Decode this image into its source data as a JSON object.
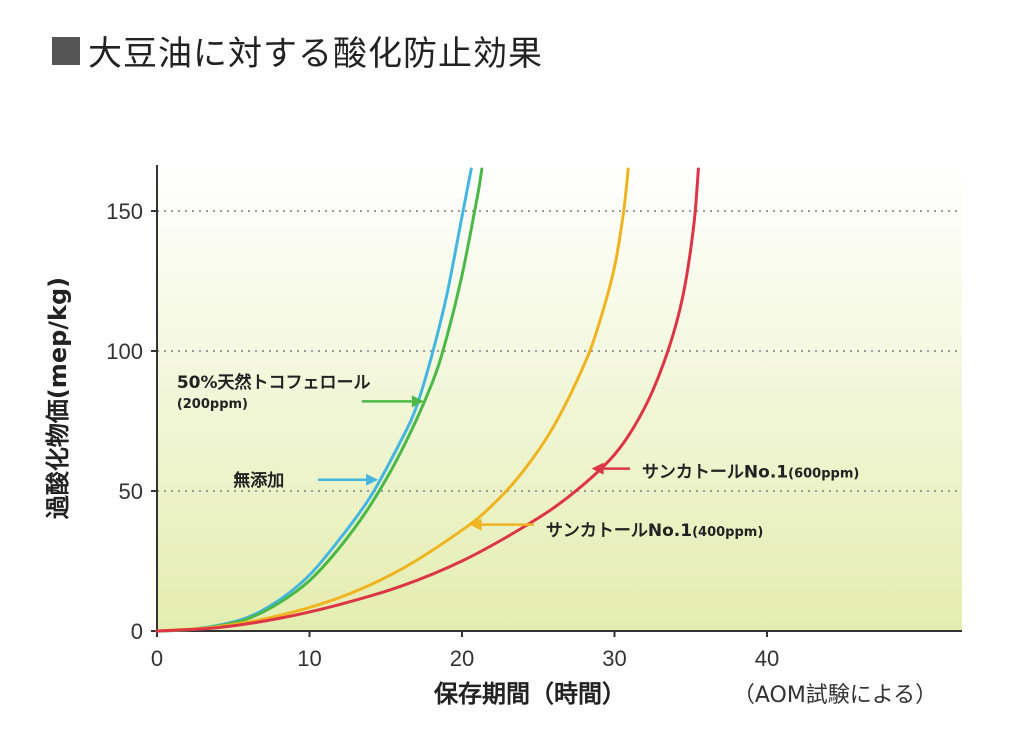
{
  "title": "大豆油に対する酸化防止効果",
  "colors": {
    "blue": "#45b6e0",
    "green": "#4cb848",
    "orange": "#efb41f",
    "red": "#dc3545",
    "background_top": "#ffffff",
    "background_bottom": "#e4edb0"
  },
  "chart_data": {
    "type": "line",
    "xlabel": "保存期間（時間）",
    "xnote": "（AOM試験による）",
    "ylabel": "過酸化物価(mep/kg)",
    "xlim": [
      0,
      52
    ],
    "ylim": [
      0,
      165
    ],
    "x_ticks": [
      0,
      10,
      20,
      30,
      40
    ],
    "y_ticks": [
      0,
      50,
      100,
      150
    ],
    "grid": "horizontal dotted",
    "series": [
      {
        "name": "無添加",
        "color": "#45b6e0",
        "points": [
          [
            0,
            0
          ],
          [
            2,
            0.5
          ],
          [
            4,
            2
          ],
          [
            6,
            5
          ],
          [
            8,
            11
          ],
          [
            10,
            20
          ],
          [
            12,
            33
          ],
          [
            14,
            48
          ],
          [
            16,
            68
          ],
          [
            17,
            80
          ],
          [
            18,
            98
          ],
          [
            19,
            120
          ],
          [
            20,
            148
          ],
          [
            20.6,
            165
          ]
        ],
        "annotation": {
          "text": "無添加",
          "sub": "",
          "arrow_x": 14.5,
          "arrow_y": 54,
          "text_x": 5,
          "text_y": 54
        }
      },
      {
        "name": "50%天然トコフェロール",
        "color": "#4cb848",
        "points": [
          [
            0,
            0
          ],
          [
            2,
            0.4
          ],
          [
            4,
            1.8
          ],
          [
            6,
            4.5
          ],
          [
            8,
            10
          ],
          [
            10,
            18
          ],
          [
            12,
            30
          ],
          [
            14,
            45
          ],
          [
            16,
            64
          ],
          [
            18,
            88
          ],
          [
            19,
            105
          ],
          [
            20,
            127
          ],
          [
            21,
            155
          ],
          [
            21.3,
            165
          ]
        ],
        "annotation": {
          "text": "50%天然トコフェロール",
          "sub": "(200ppm)",
          "arrow_x": 17.5,
          "arrow_y": 82,
          "text_x": 1.3,
          "text_y": 89
        }
      },
      {
        "name": "サンカトールNo.1(400ppm)",
        "color": "#efb41f",
        "points": [
          [
            0,
            0
          ],
          [
            4,
            1.5
          ],
          [
            8,
            5.5
          ],
          [
            12,
            12
          ],
          [
            16,
            22
          ],
          [
            20,
            36
          ],
          [
            22,
            45
          ],
          [
            24,
            57
          ],
          [
            26,
            73
          ],
          [
            28,
            95
          ],
          [
            29,
            110
          ],
          [
            30,
            130
          ],
          [
            30.6,
            150
          ],
          [
            30.9,
            165
          ]
        ],
        "annotation": {
          "text": "サンカトールNo.1",
          "sub": "(400ppm)",
          "arrow_x": 20.5,
          "arrow_y": 38,
          "text_x": 25.5,
          "text_y": 36
        }
      },
      {
        "name": "サンカトールNo.1(600ppm)",
        "color": "#dc3545",
        "points": [
          [
            0,
            0
          ],
          [
            4,
            1.2
          ],
          [
            8,
            4.5
          ],
          [
            12,
            9.5
          ],
          [
            16,
            16
          ],
          [
            20,
            25
          ],
          [
            24,
            37
          ],
          [
            27,
            48
          ],
          [
            30,
            63
          ],
          [
            32,
            80
          ],
          [
            33.5,
            100
          ],
          [
            34.5,
            120
          ],
          [
            35.2,
            145
          ],
          [
            35.5,
            165
          ]
        ],
        "annotation": {
          "text": "サンカトールNo.1",
          "sub": "(600ppm)",
          "arrow_x": 28.5,
          "arrow_y": 58,
          "text_x": 31.8,
          "text_y": 57
        }
      }
    ]
  }
}
